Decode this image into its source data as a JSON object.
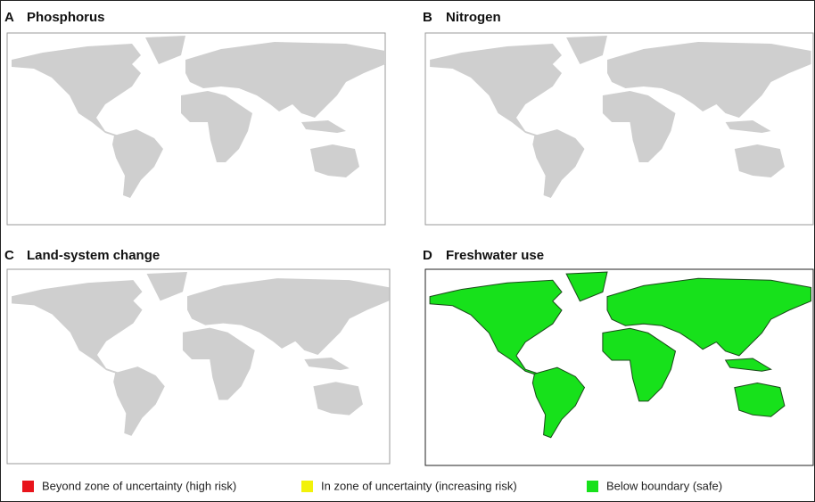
{
  "panels": [
    {
      "letter": "A",
      "title": "Phosphorus"
    },
    {
      "letter": "B",
      "title": "Nitrogen"
    },
    {
      "letter": "C",
      "title": "Land-system change"
    },
    {
      "letter": "D",
      "title": "Freshwater use"
    }
  ],
  "legend": [
    {
      "label": "Beyond zone of uncertainty (high risk)",
      "color": "#e8141b"
    },
    {
      "label": "In zone of uncertainty (increasing risk)",
      "color": "#f2f20a"
    },
    {
      "label": "Below boundary (safe)",
      "color": "#17e11b"
    }
  ]
}
